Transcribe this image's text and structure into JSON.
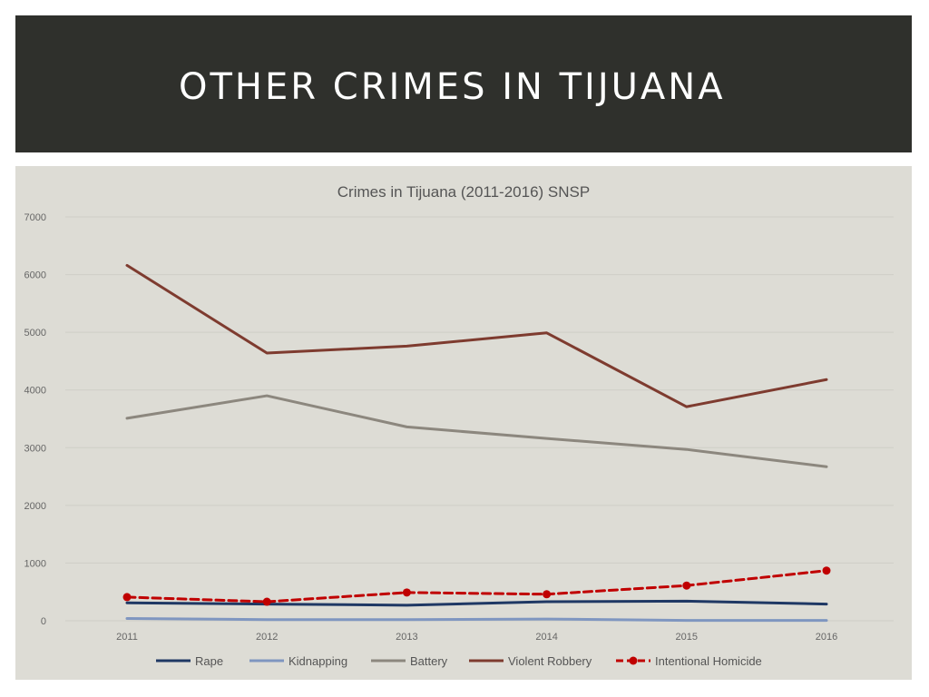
{
  "slide": {
    "title": "OTHER CRIMES IN TIJUANA"
  },
  "colors": {
    "title_bar": "#2f302c",
    "chart_background": "#dddcd5"
  },
  "chart_data": {
    "type": "line",
    "title": "Crimes in Tijuana (2011-2016) SNSP",
    "xlabel": "",
    "ylabel": "",
    "categories": [
      "2011",
      "2012",
      "2013",
      "2014",
      "2015",
      "2016"
    ],
    "ylim": [
      0,
      7000
    ],
    "yticks": [
      0,
      1000,
      2000,
      3000,
      4000,
      5000,
      6000,
      7000
    ],
    "grid": true,
    "legend_position": "bottom",
    "series": [
      {
        "name": "Rape",
        "values": [
          310,
          290,
          270,
          330,
          340,
          290
        ],
        "color": "#1f3864",
        "style": "solid",
        "markers": false
      },
      {
        "name": "Kidnapping",
        "values": [
          40,
          20,
          20,
          30,
          5,
          5
        ],
        "color": "#7f96c0",
        "style": "solid",
        "markers": false
      },
      {
        "name": "Battery",
        "values": [
          3510,
          3900,
          3360,
          3160,
          2970,
          2670
        ],
        "color": "#8c877e",
        "style": "solid",
        "markers": false
      },
      {
        "name": "Violent Robbery",
        "values": [
          6160,
          4640,
          4760,
          4990,
          3710,
          4180
        ],
        "color": "#7e3b2f",
        "style": "solid",
        "markers": false
      },
      {
        "name": "Intentional Homicide",
        "values": [
          410,
          330,
          490,
          460,
          610,
          870
        ],
        "color": "#c00000",
        "style": "dashed",
        "markers": true
      }
    ]
  }
}
